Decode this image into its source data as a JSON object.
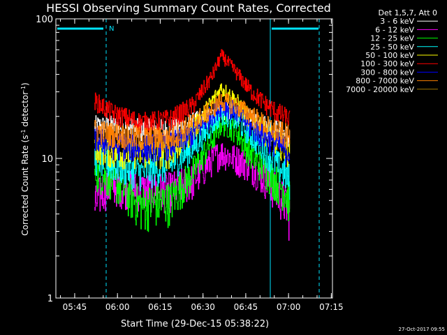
{
  "chart_data": {
    "type": "line",
    "title": "HESSI Observing Summary Count Rates, Corrected",
    "xlabel": "Start Time (29-Dec-15 05:38:22)",
    "ylabel_main": "Corrected Count Rate (s",
    "ylabel_sup1": "-1",
    "ylabel_mid": " detector",
    "ylabel_sup2": "-1",
    "ylabel_end": ")",
    "yscale": "log",
    "ylim": [
      1,
      100
    ],
    "xlim_minutes": [
      0,
      97
    ],
    "x_ticks": [
      {
        "label": "05:45",
        "minute": 6.6
      },
      {
        "label": "06:00",
        "minute": 21.6
      },
      {
        "label": "06:15",
        "minute": 36.6
      },
      {
        "label": "06:30",
        "minute": 51.6
      },
      {
        "label": "06:45",
        "minute": 66.6
      },
      {
        "label": "07:00",
        "minute": 81.6
      },
      {
        "label": "07:15",
        "minute": 96.6
      }
    ],
    "y_ticks": [
      {
        "label": "1",
        "value": 1
      },
      {
        "label": "10",
        "value": 10
      },
      {
        "label": "100",
        "value": 100
      }
    ],
    "legend_header": "Det 1,5,7, Att 0",
    "legend_placement": "right",
    "series": [
      {
        "name": "3 - 6 keV",
        "color": "#ffffff",
        "points": [
          [
            13.5,
            17
          ],
          [
            20,
            17
          ],
          [
            30,
            16
          ],
          [
            40,
            16
          ],
          [
            48,
            18
          ],
          [
            55,
            20
          ],
          [
            58,
            22
          ],
          [
            63,
            21
          ],
          [
            68,
            19
          ],
          [
            74,
            17
          ],
          [
            80,
            15
          ],
          [
            82,
            14
          ]
        ]
      },
      {
        "name": "6 - 12 keV",
        "color": "#ff00ff",
        "points": [
          [
            13.5,
            4.5
          ],
          [
            16,
            6
          ],
          [
            20,
            6.5
          ],
          [
            30,
            6
          ],
          [
            40,
            6
          ],
          [
            48,
            7
          ],
          [
            55,
            10
          ],
          [
            58,
            11
          ],
          [
            63,
            10
          ],
          [
            68,
            9
          ],
          [
            74,
            7
          ],
          [
            80,
            5
          ],
          [
            82,
            4
          ]
        ]
      },
      {
        "name": "12 - 25 keV",
        "color": "#00ff00",
        "points": [
          [
            13.5,
            8
          ],
          [
            20,
            7
          ],
          [
            30,
            4.6
          ],
          [
            40,
            5
          ],
          [
            48,
            8
          ],
          [
            55,
            14
          ],
          [
            58,
            18
          ],
          [
            63,
            16
          ],
          [
            68,
            11
          ],
          [
            74,
            8
          ],
          [
            80,
            6
          ],
          [
            82,
            5
          ]
        ]
      },
      {
        "name": "25 - 50 keV",
        "color": "#00ffff",
        "points": [
          [
            13.5,
            10
          ],
          [
            20,
            9
          ],
          [
            30,
            8
          ],
          [
            40,
            9
          ],
          [
            48,
            12
          ],
          [
            55,
            18
          ],
          [
            58,
            21
          ],
          [
            63,
            19
          ],
          [
            68,
            15
          ],
          [
            74,
            11
          ],
          [
            80,
            8
          ],
          [
            82,
            7
          ]
        ]
      },
      {
        "name": "50 - 100 keV",
        "color": "#ffff00",
        "points": [
          [
            13.5,
            12
          ],
          [
            20,
            11
          ],
          [
            30,
            11
          ],
          [
            40,
            11
          ],
          [
            48,
            16
          ],
          [
            55,
            26
          ],
          [
            58,
            32
          ],
          [
            63,
            26
          ],
          [
            68,
            19
          ],
          [
            74,
            15
          ],
          [
            80,
            12
          ],
          [
            82,
            11
          ]
        ]
      },
      {
        "name": "100 - 300 keV",
        "color": "#ff0000",
        "points": [
          [
            13.5,
            26
          ],
          [
            16,
            24
          ],
          [
            20,
            21
          ],
          [
            30,
            18
          ],
          [
            40,
            19
          ],
          [
            48,
            24
          ],
          [
            55,
            40
          ],
          [
            58,
            55
          ],
          [
            63,
            42
          ],
          [
            68,
            31
          ],
          [
            74,
            24
          ],
          [
            80,
            20
          ],
          [
            82,
            19
          ]
        ]
      },
      {
        "name": "300 - 800 keV",
        "color": "#0000ff",
        "points": [
          [
            13.5,
            14
          ],
          [
            20,
            12.5
          ],
          [
            30,
            12
          ],
          [
            40,
            12.5
          ],
          [
            48,
            15
          ],
          [
            55,
            21
          ],
          [
            58,
            24
          ],
          [
            63,
            22
          ],
          [
            68,
            17
          ],
          [
            74,
            14
          ],
          [
            80,
            12
          ],
          [
            82,
            11
          ]
        ]
      },
      {
        "name": "800 - 7000 keV",
        "color": "#ff8000",
        "points": [
          [
            13.5,
            16
          ],
          [
            20,
            15
          ],
          [
            30,
            14
          ],
          [
            40,
            14
          ],
          [
            48,
            18
          ],
          [
            55,
            23
          ],
          [
            58,
            26
          ],
          [
            63,
            24
          ],
          [
            68,
            21
          ],
          [
            74,
            17
          ],
          [
            80,
            15
          ],
          [
            82,
            14
          ]
        ]
      },
      {
        "name": "7000 - 20000 keV",
        "color": "#a07800",
        "points": []
      }
    ],
    "annotations": {
      "night_label": "N",
      "timestamp": "27-Oct-2017 09:55"
    }
  }
}
